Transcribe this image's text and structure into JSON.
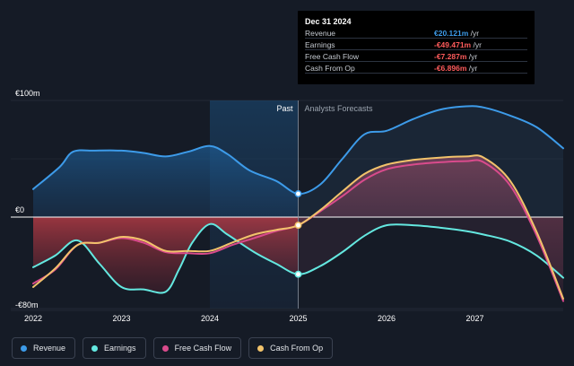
{
  "tooltip": {
    "date": "Dec 31 2024",
    "rows": [
      {
        "label": "Revenue",
        "value": "€20.121m",
        "unit": "/yr",
        "color": "#3d9be9"
      },
      {
        "label": "Earnings",
        "value": "-€49.471m",
        "unit": "/yr",
        "color": "#ff5c5c"
      },
      {
        "label": "Free Cash Flow",
        "value": "-€7.287m",
        "unit": "/yr",
        "color": "#ff5c5c"
      },
      {
        "label": "Cash From Op",
        "value": "-€6.896m",
        "unit": "/yr",
        "color": "#ff5c5c"
      }
    ]
  },
  "legend": [
    {
      "label": "Revenue",
      "color": "#3d9be9"
    },
    {
      "label": "Earnings",
      "color": "#64e8e0"
    },
    {
      "label": "Free Cash Flow",
      "color": "#d94b8c"
    },
    {
      "label": "Cash From Op",
      "color": "#f2c36b"
    }
  ],
  "chart_data": {
    "type": "line",
    "ylim": [
      -80,
      100
    ],
    "xlim": [
      2022,
      2028
    ],
    "y_ticks": [
      {
        "value": 100,
        "label": "€100m"
      },
      {
        "value": 0,
        "label": "€0"
      },
      {
        "value": -80,
        "label": "-€80m"
      }
    ],
    "x_ticks": [
      {
        "value": 2022,
        "label": "2022"
      },
      {
        "value": 2023,
        "label": "2023"
      },
      {
        "value": 2024,
        "label": "2024"
      },
      {
        "value": 2025,
        "label": "2025"
      },
      {
        "value": 2026,
        "label": "2026"
      },
      {
        "value": 2027,
        "label": "2027"
      }
    ],
    "past_label": "Past",
    "forecast_label": "Analysts Forecasts",
    "divider_x": 2025,
    "shade_start_x": 2024,
    "series": [
      {
        "name": "Revenue",
        "color": "#3d9be9",
        "x": [
          2022.0,
          2022.3,
          2022.45,
          2022.7,
          2023.0,
          2023.25,
          2023.5,
          2023.75,
          2024.0,
          2024.2,
          2024.45,
          2024.75,
          2025.0,
          2025.25,
          2025.5,
          2025.75,
          2026.0,
          2026.3,
          2026.6,
          2026.9,
          2027.1,
          2027.4,
          2027.7,
          2028.0
        ],
        "y": [
          24,
          43,
          56,
          57,
          57,
          55,
          52,
          56,
          61,
          54,
          40,
          31,
          20,
          28,
          50,
          71,
          74,
          84,
          92,
          95,
          94,
          87,
          77,
          59
        ]
      },
      {
        "name": "Earnings",
        "color": "#64e8e0",
        "x": [
          2022.0,
          2022.25,
          2022.5,
          2022.75,
          2023.0,
          2023.25,
          2023.5,
          2023.65,
          2023.8,
          2024.0,
          2024.2,
          2024.5,
          2024.75,
          2025.0,
          2025.25,
          2025.5,
          2025.75,
          2026.0,
          2026.3,
          2026.6,
          2026.9,
          2027.1,
          2027.4,
          2027.7,
          2028.0
        ],
        "y": [
          -43,
          -33,
          -20,
          -40,
          -60,
          -62,
          -64,
          -45,
          -22,
          -6,
          -15,
          -30,
          -40,
          -49,
          -42,
          -30,
          -16,
          -7,
          -7,
          -9,
          -12,
          -15,
          -21,
          -33,
          -52
        ]
      },
      {
        "name": "Free Cash Flow",
        "color": "#d94b8c",
        "x": [
          2022.0,
          2022.25,
          2022.5,
          2022.75,
          2023.0,
          2023.25,
          2023.5,
          2023.75,
          2024.0,
          2024.25,
          2024.5,
          2024.75,
          2025.0,
          2025.25,
          2025.5,
          2025.75,
          2026.0,
          2026.3,
          2026.6,
          2026.9,
          2027.1,
          2027.4,
          2027.7,
          2028.0
        ],
        "y": [
          -57,
          -45,
          -24,
          -22,
          -18,
          -22,
          -30,
          -31,
          -31,
          -24,
          -18,
          -12,
          -7,
          5,
          18,
          32,
          41,
          45,
          47,
          48,
          47,
          27,
          -16,
          -72
        ]
      },
      {
        "name": "Cash From Op",
        "color": "#f2c36b",
        "x": [
          2022.0,
          2022.25,
          2022.5,
          2022.75,
          2023.0,
          2023.25,
          2023.5,
          2023.75,
          2024.0,
          2024.25,
          2024.5,
          2024.75,
          2025.0,
          2025.25,
          2025.5,
          2025.75,
          2026.0,
          2026.3,
          2026.6,
          2026.9,
          2027.1,
          2027.4,
          2027.7,
          2028.0
        ],
        "y": [
          -60,
          -44,
          -24,
          -22,
          -17,
          -20,
          -29,
          -29,
          -29,
          -22,
          -15,
          -11,
          -7,
          6,
          22,
          37,
          45,
          49,
          51,
          52,
          51,
          31,
          -13,
          -70
        ]
      }
    ],
    "markers": [
      {
        "series": "Revenue",
        "x": 2025.0,
        "y": 20
      },
      {
        "series": "Cash From Op",
        "x": 2025.0,
        "y": -7
      },
      {
        "series": "Earnings",
        "x": 2025.0,
        "y": -49
      }
    ]
  }
}
